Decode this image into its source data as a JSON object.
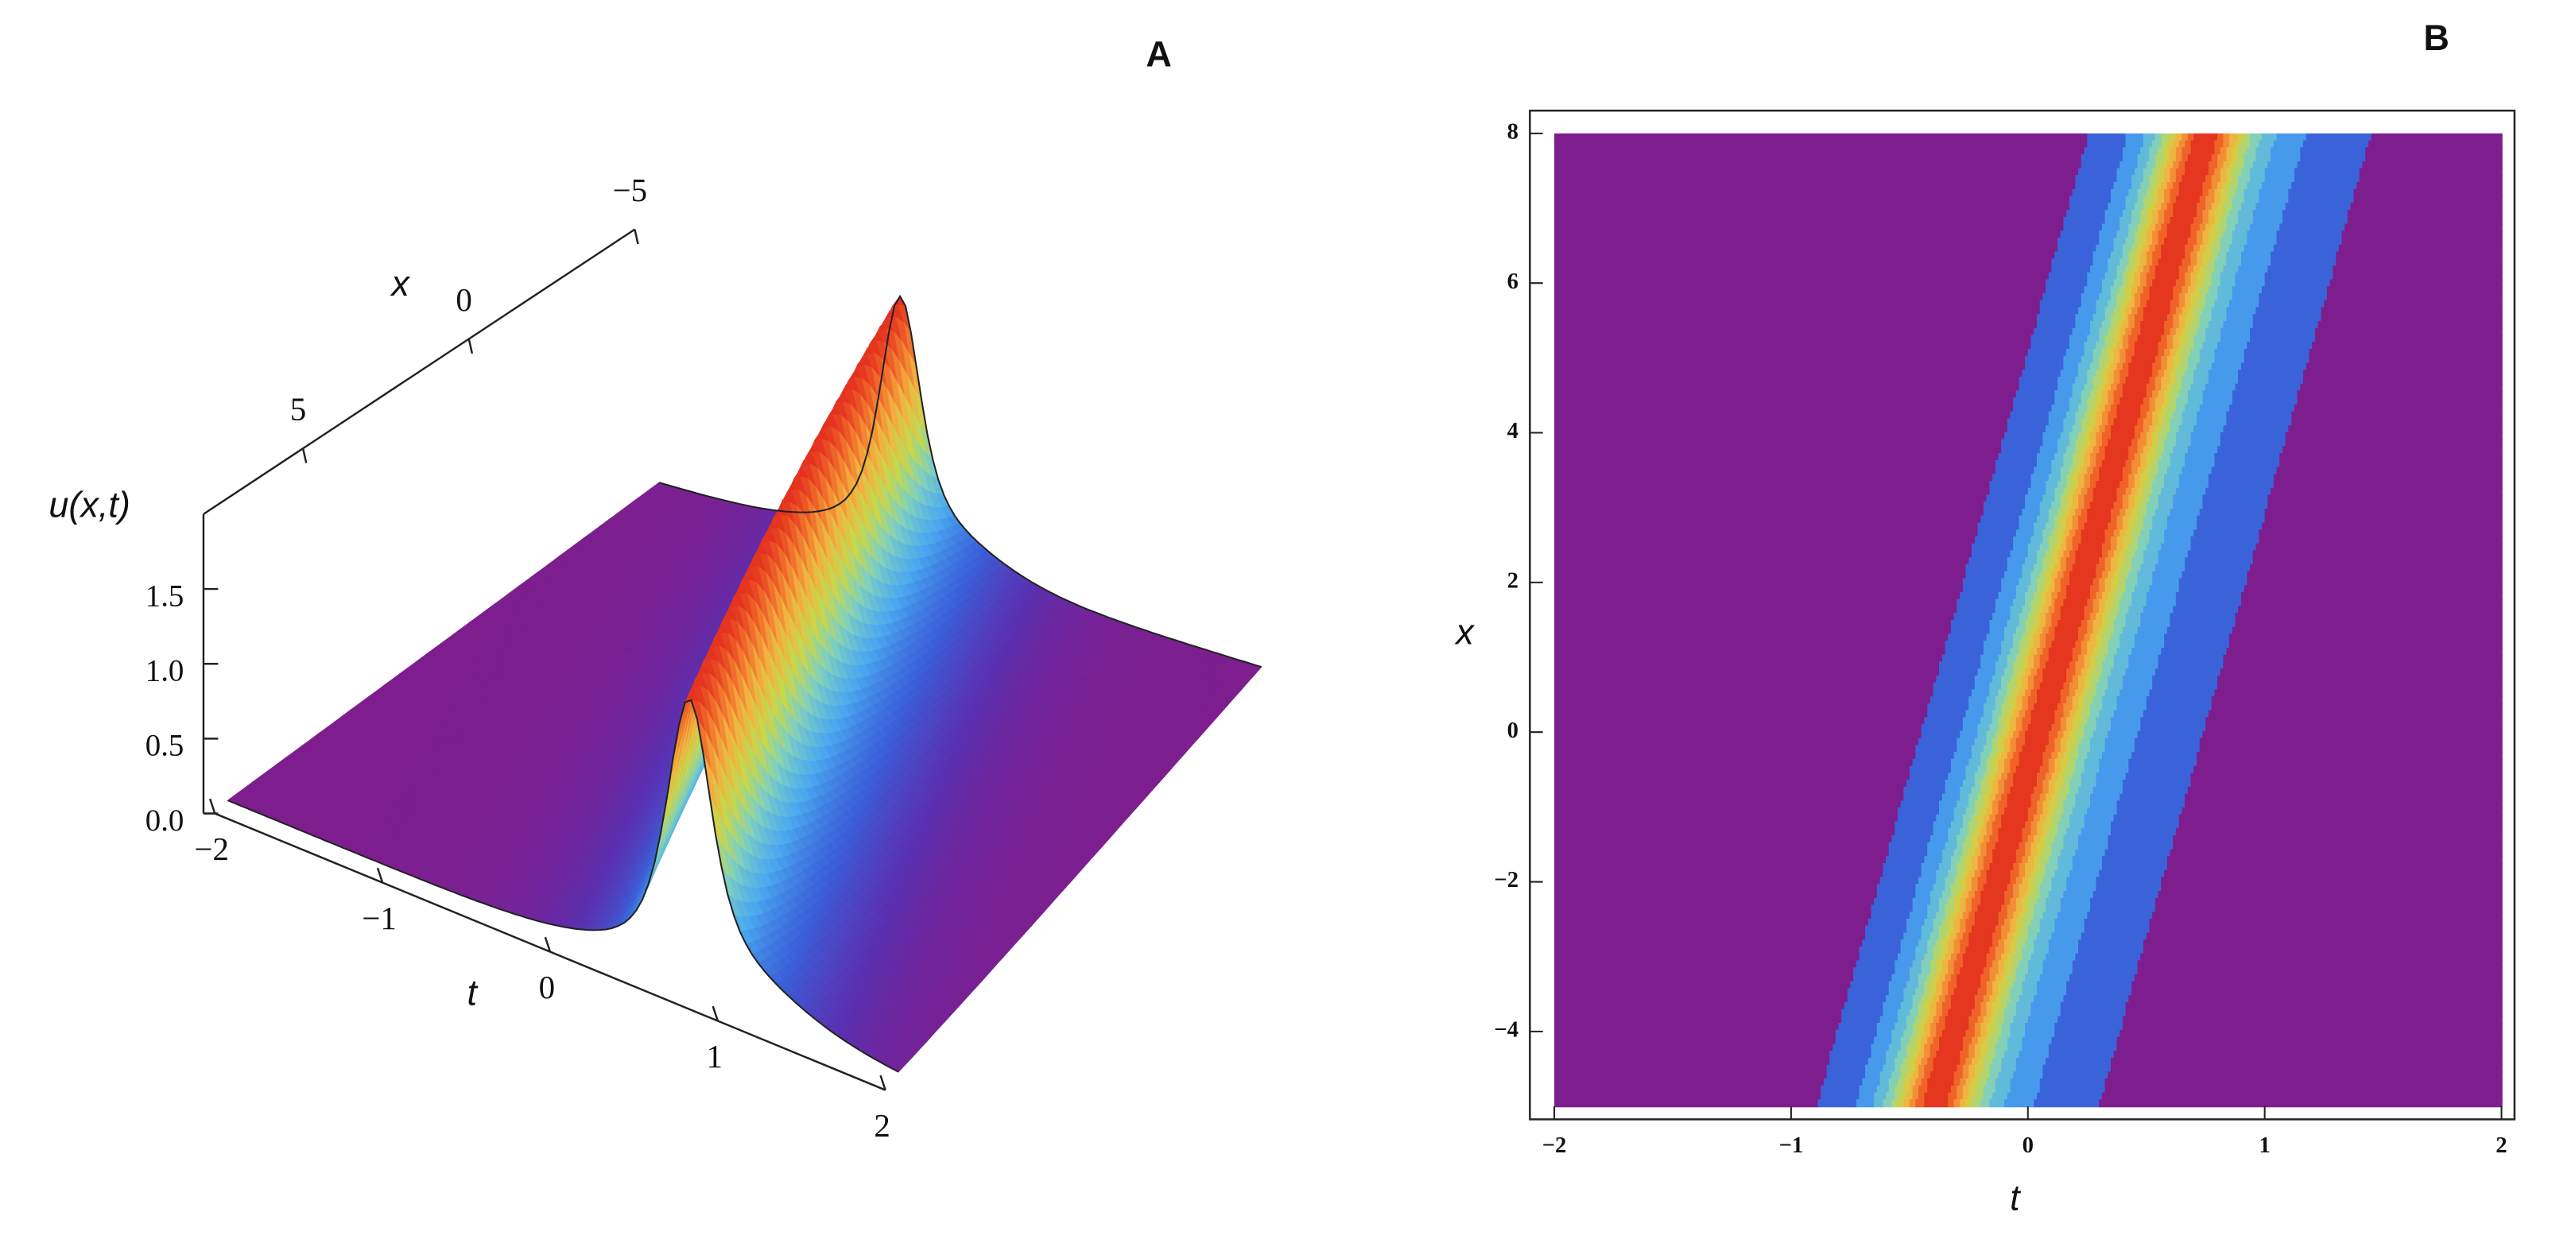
{
  "chart_data": [
    {
      "type": "surface3d",
      "title": "A",
      "xlabel": "t",
      "ylabel": "x",
      "zlabel": "u(x,t)",
      "xlim": [
        -2,
        2
      ],
      "xticks": [
        {
          "value": -2,
          "label": "−2"
        },
        {
          "value": -1,
          "label": "−1"
        },
        0,
        1,
        2
      ],
      "ylim": [
        -5,
        8
      ],
      "yticks": [
        {
          "value": -5,
          "label": "−5"
        },
        0,
        5
      ],
      "zlim": [
        0,
        2
      ],
      "zticks": [
        {
          "value": 0,
          "label": "0.0"
        },
        {
          "value": 0.5,
          "label": "0.5"
        },
        {
          "value": 1,
          "label": "1.0"
        },
        {
          "value": 1.5,
          "label": "1.5"
        }
      ]
    },
    {
      "type": "density",
      "title": "B",
      "xlabel": "t",
      "ylabel": "x",
      "xlim": [
        -2,
        2
      ],
      "xticks": [
        {
          "value": -2,
          "label": "−2"
        },
        {
          "value": -1,
          "label": "−1"
        },
        0,
        1,
        2
      ],
      "ylim": [
        -5,
        8
      ],
      "yticks": [
        {
          "value": -4,
          "label": "−4"
        },
        {
          "value": -2,
          "label": "−2"
        },
        0,
        2,
        4,
        6,
        8
      ]
    }
  ]
}
